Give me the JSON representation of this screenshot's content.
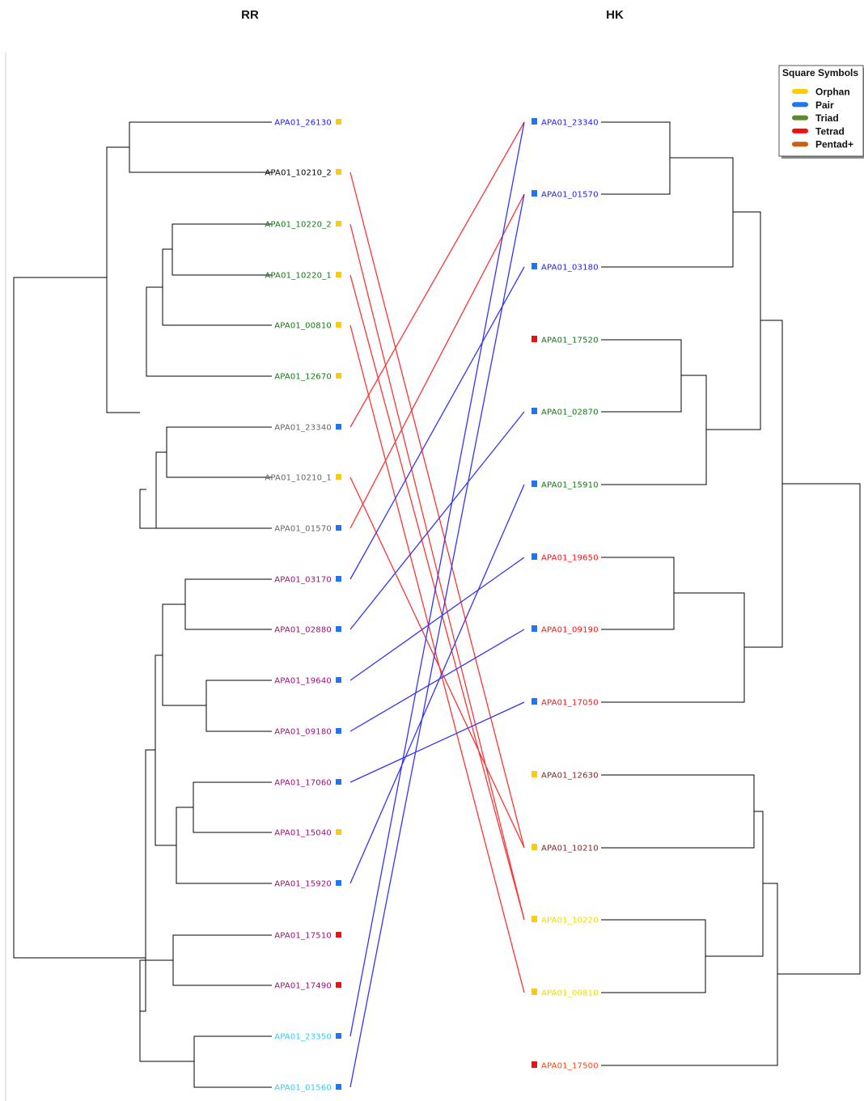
{
  "titles": {
    "left": "RR",
    "right": "HK"
  },
  "colors": {
    "orphan": "#ffcc00",
    "pair": "#1a75ff",
    "triad": "#5a8a2a",
    "tetrad": "#ee1111",
    "pentad": "#c8601a",
    "link_red": "#ff3333",
    "link_blue": "#3333ff",
    "tree": "#000000",
    "blue_text": "#1a1aff",
    "green_text": "#117711",
    "gray_text": "#666666",
    "black_text": "#000000",
    "purple_text": "#991177",
    "cyan_text": "#33ccee",
    "red_text": "#ff1111",
    "brown_text": "#882222",
    "yellow_text": "#eedd00",
    "orange_text": "#ff4411"
  },
  "legend": {
    "title": "Square Symbols",
    "items": [
      {
        "label": "Orphan",
        "color": "orphan"
      },
      {
        "label": "Pair",
        "color": "pair"
      },
      {
        "label": "Triad",
        "color": "triad"
      },
      {
        "label": "Tetrad",
        "color": "tetrad"
      },
      {
        "label": "Pentad+",
        "color": "pentad"
      }
    ]
  },
  "left_leaves": [
    {
      "label": "APA01_26130",
      "text_color": "blue_text",
      "square": "orphan"
    },
    {
      "label": "APA01_10210_2",
      "text_color": "black_text",
      "square": "orphan"
    },
    {
      "label": "APA01_10220_2",
      "text_color": "green_text",
      "square": "orphan"
    },
    {
      "label": "APA01_10220_1",
      "text_color": "green_text",
      "square": "orphan"
    },
    {
      "label": "APA01_00810",
      "text_color": "green_text",
      "square": "orphan"
    },
    {
      "label": "APA01_12670",
      "text_color": "green_text",
      "square": "orphan"
    },
    {
      "label": "APA01_23340",
      "text_color": "gray_text",
      "square": "pair"
    },
    {
      "label": "APA01_10210_1",
      "text_color": "gray_text",
      "square": "orphan"
    },
    {
      "label": "APA01_01570",
      "text_color": "gray_text",
      "square": "pair"
    },
    {
      "label": "APA01_03170",
      "text_color": "purple_text",
      "square": "pair"
    },
    {
      "label": "APA01_02880",
      "text_color": "purple_text",
      "square": "pair"
    },
    {
      "label": "APA01_19640",
      "text_color": "purple_text",
      "square": "pair"
    },
    {
      "label": "APA01_09180",
      "text_color": "purple_text",
      "square": "pair"
    },
    {
      "label": "APA01_17060",
      "text_color": "purple_text",
      "square": "pair"
    },
    {
      "label": "APA01_15040",
      "text_color": "purple_text",
      "square": "orphan"
    },
    {
      "label": "APA01_15920",
      "text_color": "purple_text",
      "square": "pair"
    },
    {
      "label": "APA01_17510",
      "text_color": "purple_text",
      "square": "tetrad"
    },
    {
      "label": "APA01_17490",
      "text_color": "purple_text",
      "square": "tetrad"
    },
    {
      "label": "APA01_23350",
      "text_color": "cyan_text",
      "square": "pair"
    },
    {
      "label": "APA01_01560",
      "text_color": "cyan_text",
      "square": "pair"
    }
  ],
  "right_leaves": [
    {
      "label": "APA01_23340",
      "text_color": "blue_text",
      "square": "pair"
    },
    {
      "label": "APA01_01570",
      "text_color": "blue_text",
      "square": "pair"
    },
    {
      "label": "APA01_03180",
      "text_color": "blue_text",
      "square": "pair"
    },
    {
      "label": "APA01_17520",
      "text_color": "green_text",
      "square": "tetrad"
    },
    {
      "label": "APA01_02870",
      "text_color": "green_text",
      "square": "pair"
    },
    {
      "label": "APA01_15910",
      "text_color": "green_text",
      "square": "pair"
    },
    {
      "label": "APA01_19650",
      "text_color": "red_text",
      "square": "pair"
    },
    {
      "label": "APA01_09190",
      "text_color": "red_text",
      "square": "pair"
    },
    {
      "label": "APA01_17050",
      "text_color": "red_text",
      "square": "pair"
    },
    {
      "label": "APA01_12630",
      "text_color": "brown_text",
      "square": "orphan"
    },
    {
      "label": "APA01_10210",
      "text_color": "brown_text",
      "square": "orphan"
    },
    {
      "label": "APA01_10220",
      "text_color": "yellow_text",
      "square": "orphan"
    },
    {
      "label": "APA01_00810",
      "text_color": "yellow_text",
      "square": "orphan"
    },
    {
      "label": "APA01_17500",
      "text_color": "orange_text",
      "square": "tetrad"
    }
  ],
  "links": [
    {
      "from": 1,
      "to": 10,
      "color": "link_red"
    },
    {
      "from": 2,
      "to": 11,
      "color": "link_red"
    },
    {
      "from": 3,
      "to": 11,
      "color": "link_red"
    },
    {
      "from": 4,
      "to": 12,
      "color": "link_red"
    },
    {
      "from": 6,
      "to": 0,
      "color": "link_red"
    },
    {
      "from": 7,
      "to": 10,
      "color": "link_red"
    },
    {
      "from": 8,
      "to": 1,
      "color": "link_red"
    },
    {
      "from": 9,
      "to": 2,
      "color": "link_blue"
    },
    {
      "from": 10,
      "to": 4,
      "color": "link_blue"
    },
    {
      "from": 11,
      "to": 6,
      "color": "link_blue"
    },
    {
      "from": 12,
      "to": 7,
      "color": "link_blue"
    },
    {
      "from": 13,
      "to": 8,
      "color": "link_blue"
    },
    {
      "from": 15,
      "to": 5,
      "color": "link_blue"
    },
    {
      "from": 18,
      "to": 0,
      "color": "link_blue"
    },
    {
      "from": 19,
      "to": 1,
      "color": "link_blue"
    }
  ]
}
